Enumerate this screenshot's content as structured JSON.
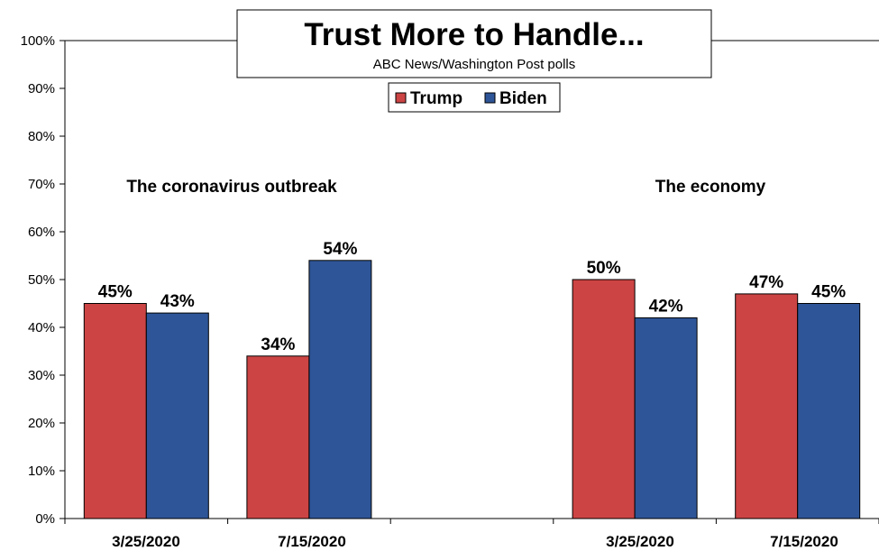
{
  "chart_data": {
    "type": "bar",
    "title": "Trust More to Handle...",
    "subtitle": "ABC News/Washington  Post polls",
    "yticks": [
      "0%",
      "10%",
      "20%",
      "30%",
      "40%",
      "50%",
      "60%",
      "70%",
      "80%",
      "90%",
      "100%"
    ],
    "ylim": [
      0,
      100
    ],
    "grid": false,
    "legend_position": "top-center",
    "groups": [
      {
        "label": "The coronavirus outbreak",
        "categories": [
          "3/25/2020",
          "7/15/2020"
        ]
      },
      {
        "label": "The economy",
        "categories": [
          "3/25/2020",
          "7/15/2020"
        ]
      }
    ],
    "series": [
      {
        "name": "Trump",
        "color": "#CC4444",
        "values": [
          45,
          34,
          50,
          47
        ],
        "labels": [
          "45%",
          "34%",
          "50%",
          "47%"
        ]
      },
      {
        "name": "Biden",
        "color": "#2E5597",
        "values": [
          43,
          54,
          42,
          45
        ],
        "labels": [
          "43%",
          "54%",
          "42%",
          "45%"
        ]
      }
    ]
  }
}
